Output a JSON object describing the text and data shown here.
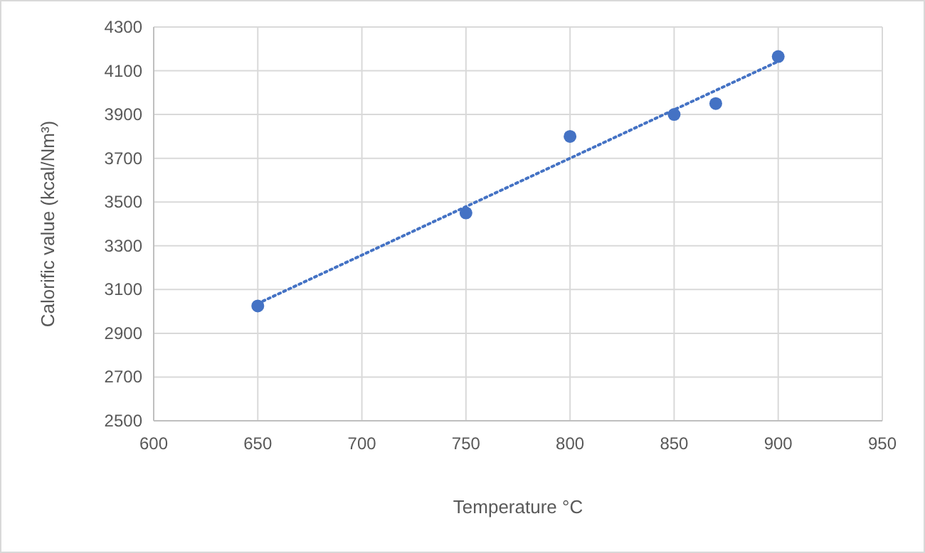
{
  "chart_data": {
    "type": "scatter",
    "xlabel": "Temperature °C",
    "ylabel": "Calorific value (kcal/Nm³)",
    "xlim": [
      600,
      950
    ],
    "xticks": [
      600,
      650,
      700,
      750,
      800,
      850,
      900,
      950
    ],
    "ylim": [
      2500,
      4300
    ],
    "yticks": [
      2500,
      2700,
      2900,
      3100,
      3300,
      3500,
      3700,
      3900,
      4100,
      4300
    ],
    "grid": true,
    "x": [
      650,
      750,
      800,
      850,
      870,
      900
    ],
    "series": [
      {
        "color": "#4472c4",
        "marker": "circle",
        "values": [
          3025,
          3450,
          3800,
          3900,
          3950,
          4165
        ]
      },
      {
        "type": "line",
        "color": "#4472c4",
        "x": [
          650,
          900
        ],
        "values": [
          3036,
          4143
        ],
        "line_style": "dotted",
        "marker": "none"
      }
    ]
  }
}
